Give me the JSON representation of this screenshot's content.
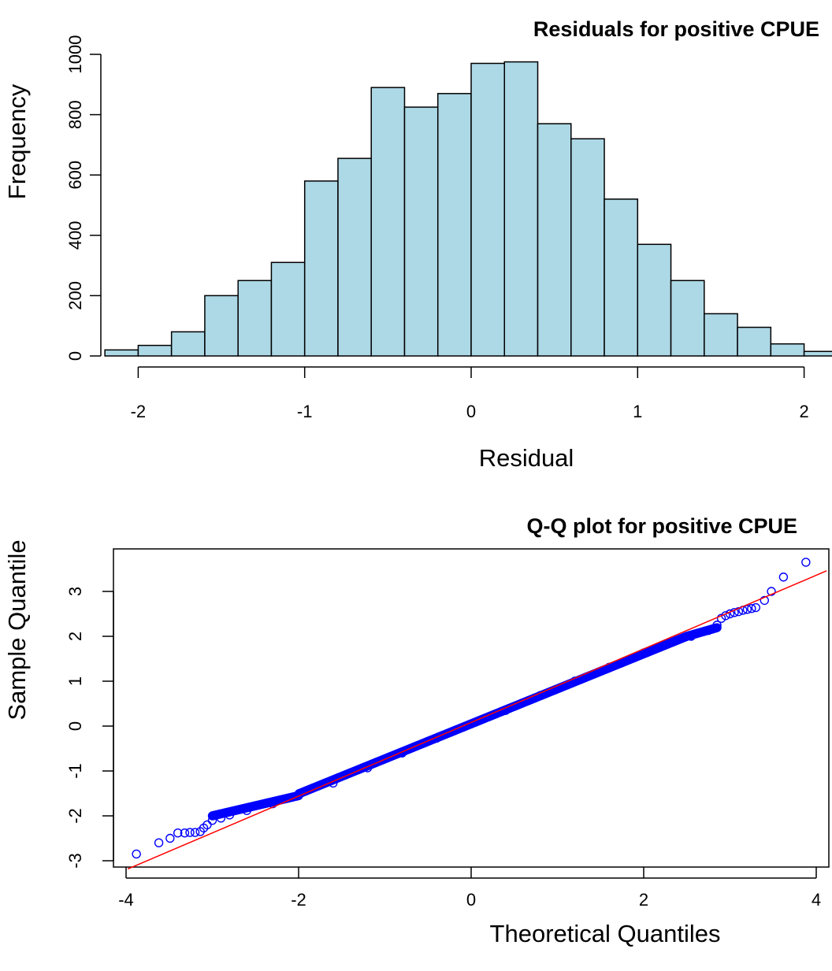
{
  "chart_data": [
    {
      "type": "bar",
      "title": "Residuals for positive CPUE",
      "xlabel": "Residual",
      "ylabel": "Frequency",
      "bin_edges": [
        -2.2,
        -2.0,
        -1.8,
        -1.6,
        -1.4,
        -1.2,
        -1.0,
        -0.8,
        -0.6,
        -0.4,
        -0.2,
        0.0,
        0.2,
        0.4,
        0.6,
        0.8,
        1.0,
        1.2,
        1.4,
        1.6,
        1.8,
        2.0,
        2.2
      ],
      "values": [
        20,
        35,
        80,
        200,
        250,
        310,
        580,
        655,
        890,
        825,
        870,
        970,
        975,
        770,
        720,
        520,
        370,
        250,
        140,
        95,
        40,
        15
      ],
      "xticks": [
        -2,
        -1,
        0,
        1,
        2
      ],
      "xtick_labels": [
        "-2",
        "-1",
        "0",
        "1",
        "2"
      ],
      "yticks": [
        0,
        200,
        400,
        600,
        800,
        1000
      ],
      "ytick_labels": [
        "0",
        "200",
        "400",
        "600",
        "800",
        "1000"
      ],
      "xlim": [
        -2.2,
        2.2
      ],
      "ylim": [
        0,
        1000
      ],
      "bar_color": "#add8e6",
      "grid": false
    },
    {
      "type": "scatter",
      "title": "Q-Q plot for positive CPUE",
      "xlabel": "Theoretical Quantiles",
      "ylabel": "Sample Quantile",
      "xticks": [
        -4,
        -2,
        0,
        2,
        4
      ],
      "xtick_labels": [
        "-4",
        "-2",
        "0",
        "2",
        "4"
      ],
      "yticks": [
        -3,
        -2,
        -1,
        0,
        1,
        2,
        3
      ],
      "ytick_labels": [
        "-3",
        "-2",
        "-1",
        "0",
        "1",
        "2",
        "3"
      ],
      "xlim": [
        -4.1,
        4.1
      ],
      "ylim": [
        -3.1,
        3.8
      ],
      "point_color": "#0000ff",
      "line_color": "#ff0000",
      "reference_line": {
        "intercept": 0.08,
        "slope": 0.82
      },
      "points": {
        "x": [
          -3.88,
          -3.62,
          -3.49,
          -3.4,
          -3.32,
          -3.26,
          -3.2,
          -3.14,
          -3.1,
          -3.06,
          -3.0,
          -2.9,
          -2.8,
          -2.6,
          -2.3,
          -2.0,
          -1.6,
          -1.2,
          -0.8,
          -0.4,
          0.0,
          0.4,
          0.8,
          1.2,
          1.6,
          2.0,
          2.3,
          2.55,
          2.75,
          2.85,
          2.9,
          2.95,
          3.0,
          3.05,
          3.1,
          3.15,
          3.2,
          3.25,
          3.3,
          3.4,
          3.48,
          3.62,
          3.88
        ],
        "y": [
          -2.85,
          -2.6,
          -2.5,
          -2.38,
          -2.38,
          -2.37,
          -2.37,
          -2.35,
          -2.27,
          -2.2,
          -2.1,
          -2.05,
          -1.98,
          -1.88,
          -1.73,
          -1.55,
          -1.27,
          -0.93,
          -0.6,
          -0.27,
          0.05,
          0.35,
          0.68,
          1.0,
          1.31,
          1.63,
          1.85,
          2.0,
          2.13,
          2.25,
          2.4,
          2.46,
          2.5,
          2.53,
          2.55,
          2.58,
          2.6,
          2.62,
          2.64,
          2.8,
          3.0,
          3.32,
          3.65
        ]
      },
      "grid": false
    }
  ]
}
